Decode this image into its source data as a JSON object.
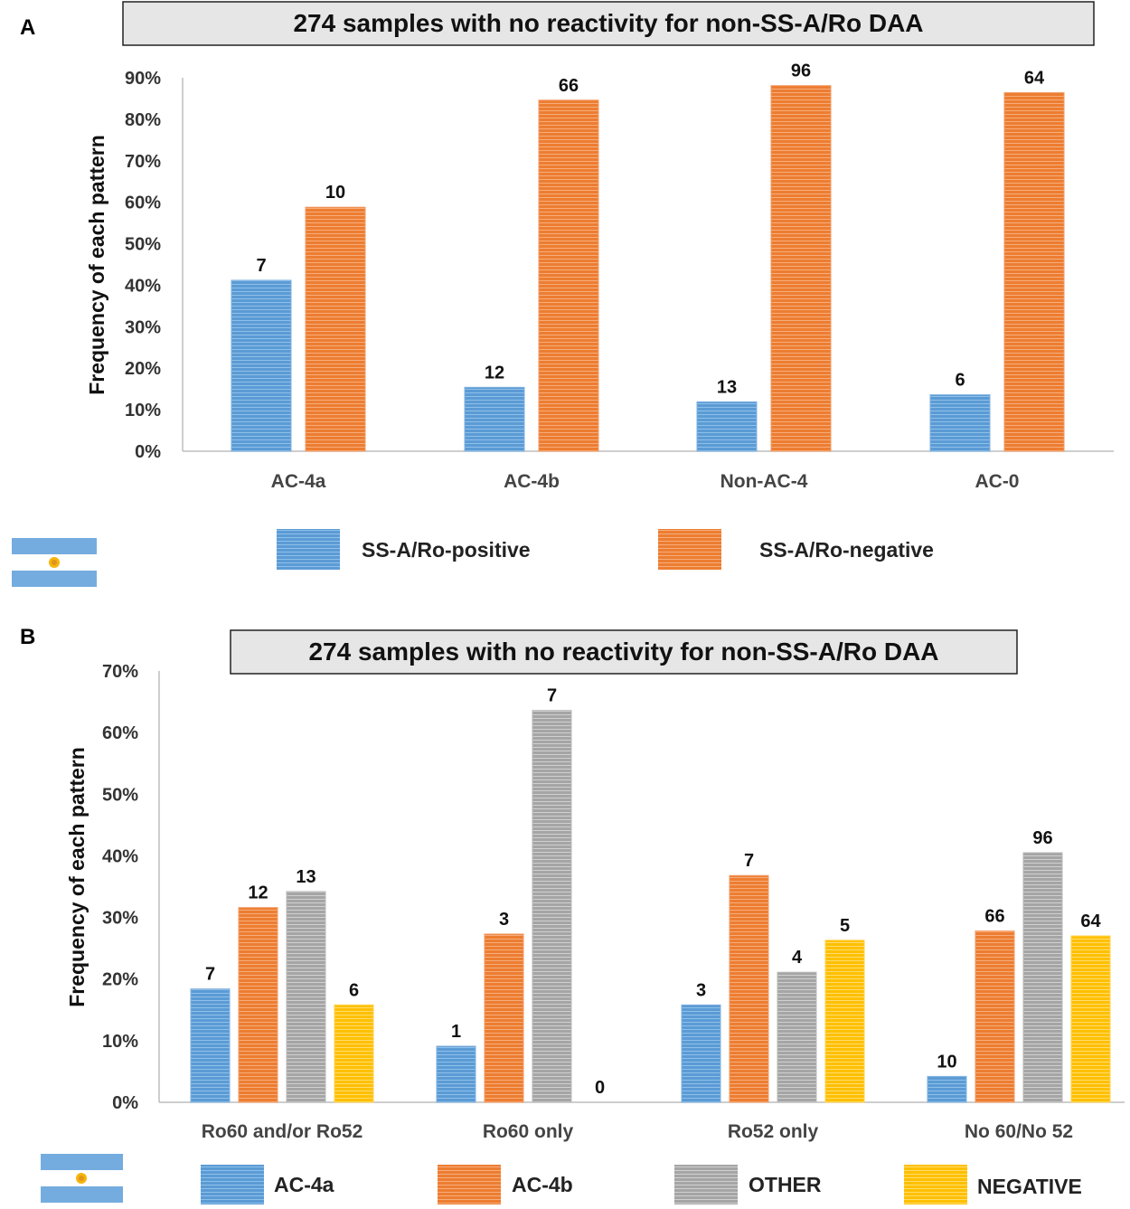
{
  "colors": {
    "blue": "#5b9bd5",
    "blue_edge": "#7fb0de",
    "orange": "#ed7d31",
    "orange_edge": "#f19a63",
    "gray": "#a5a5a5",
    "gray_edge": "#b8b8b8",
    "yellow": "#ffc000",
    "yellow_edge": "#ffd24d",
    "flag_blue": "#74acdf",
    "flag_sun": "#f6b40e"
  },
  "chart_data": [
    {
      "panel": "A",
      "type": "bar",
      "title": "274 samples with no reactivity for non-SS-A/Ro DAA",
      "ylabel": "Frequency of each pattern",
      "xlabel": "",
      "ylim": [
        0,
        90
      ],
      "yticks": [
        "0%",
        "10%",
        "20%",
        "30%",
        "40%",
        "50%",
        "60%",
        "70%",
        "80%",
        "90%"
      ],
      "categories": [
        "AC-4a",
        "AC-4b",
        "Non-AC-4",
        "AC-0"
      ],
      "series": [
        {
          "name": "SS-A/Ro-positive",
          "color_key": "blue",
          "values": [
            41.2,
            15.4,
            11.9,
            13.6
          ],
          "labels": [
            "7",
            "12",
            "13",
            "6"
          ]
        },
        {
          "name": "SS-A/Ro-negative",
          "color_key": "orange",
          "values": [
            58.8,
            84.6,
            88.1,
            86.4
          ],
          "labels": [
            "10",
            "66",
            "96",
            "64"
          ]
        }
      ],
      "legend": "bottom",
      "grid": false
    },
    {
      "panel": "B",
      "type": "bar",
      "title": "274 samples with no reactivity for non-SS-A/Ro DAA",
      "ylabel": "Frequency of each pattern",
      "xlabel": "",
      "ylim": [
        0,
        70
      ],
      "yticks": [
        "0%",
        "10%",
        "20%",
        "30%",
        "40%",
        "50%",
        "60%",
        "70%"
      ],
      "categories": [
        "Ro60 and/or Ro52",
        "Ro60 only",
        "Ro52 only",
        "No 60/No 52"
      ],
      "series": [
        {
          "name": "AC-4a",
          "color_key": "blue",
          "values": [
            18.4,
            9.1,
            15.8,
            4.2
          ],
          "labels": [
            "7",
            "1",
            "3",
            "10"
          ]
        },
        {
          "name": "AC-4b",
          "color_key": "orange",
          "values": [
            31.6,
            27.3,
            36.8,
            27.8
          ],
          "labels": [
            "12",
            "3",
            "7",
            "66"
          ]
        },
        {
          "name": "OTHER",
          "color_key": "gray",
          "values": [
            34.2,
            63.6,
            21.1,
            40.5
          ],
          "labels": [
            "13",
            "7",
            "4",
            "96"
          ]
        },
        {
          "name": "NEGATIVE",
          "color_key": "yellow",
          "values": [
            15.8,
            0,
            26.3,
            27.0
          ],
          "labels": [
            "6",
            "0",
            "5",
            "64"
          ]
        }
      ],
      "legend": "bottom",
      "grid": false
    }
  ]
}
